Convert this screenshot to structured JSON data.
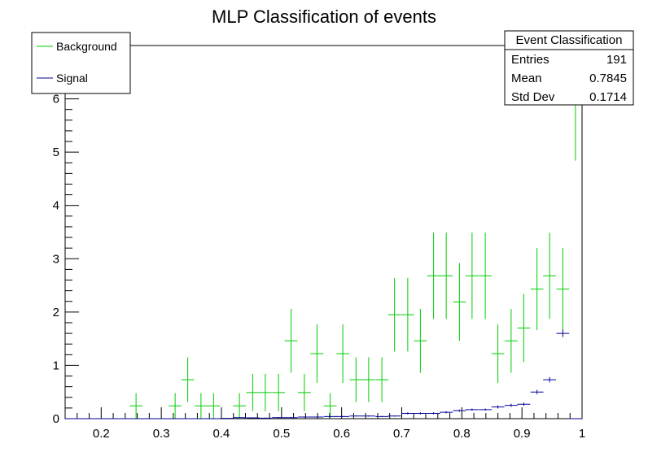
{
  "chart_data": {
    "type": "scatter",
    "title": "MLP Classification of events",
    "xlabel": "",
    "ylabel": "",
    "xlim": [
      0.14,
      1.0
    ],
    "ylim": [
      0,
      7.0
    ],
    "x_ticks": [
      "0.2",
      "0.3",
      "0.4",
      "0.5",
      "0.6",
      "0.7",
      "0.8",
      "0.9",
      "1"
    ],
    "y_ticks": [
      "0",
      "1",
      "2",
      "3",
      "4",
      "5",
      "6"
    ],
    "bin_width": 0.0215,
    "legend": {
      "placement": "top-left",
      "entries": [
        {
          "label": "Background",
          "color": "#00cc00"
        },
        {
          "label": "Signal",
          "color": "#000099"
        }
      ]
    },
    "stats_box": {
      "title": "Event Classification",
      "rows": [
        {
          "label": "Entries",
          "value": "191"
        },
        {
          "label": "Mean",
          "value": "0.7845"
        },
        {
          "label": "Std Dev",
          "value": "0.1714"
        }
      ]
    },
    "series": [
      {
        "name": "Background",
        "color": "#00cc00",
        "x": [
          0.258,
          0.323,
          0.344,
          0.366,
          0.387,
          0.43,
          0.452,
          0.473,
          0.495,
          0.516,
          0.538,
          0.559,
          0.581,
          0.602,
          0.624,
          0.645,
          0.667,
          0.688,
          0.71,
          0.731,
          0.753,
          0.774,
          0.796,
          0.817,
          0.839,
          0.86,
          0.882,
          0.903,
          0.925,
          0.946,
          0.968,
          0.989
        ],
        "y": [
          0.24,
          0.24,
          0.73,
          0.24,
          0.24,
          0.24,
          0.49,
          0.49,
          0.49,
          1.46,
          0.49,
          1.22,
          0.24,
          1.22,
          0.73,
          0.73,
          0.73,
          1.95,
          1.95,
          1.46,
          2.68,
          2.68,
          2.19,
          2.68,
          2.68,
          1.22,
          1.46,
          1.7,
          2.43,
          2.68,
          2.43,
          6.08
        ],
        "y_err": [
          0.24,
          0.24,
          0.42,
          0.24,
          0.24,
          0.24,
          0.35,
          0.35,
          0.35,
          0.6,
          0.35,
          0.55,
          0.24,
          0.55,
          0.42,
          0.42,
          0.42,
          0.69,
          0.69,
          0.6,
          0.81,
          0.81,
          0.73,
          0.81,
          0.81,
          0.55,
          0.6,
          0.64,
          0.77,
          0.81,
          0.77,
          1.24
        ]
      },
      {
        "name": "Signal",
        "color": "#000099",
        "x": [
          0.151,
          0.172,
          0.194,
          0.215,
          0.237,
          0.258,
          0.28,
          0.301,
          0.323,
          0.344,
          0.366,
          0.387,
          0.409,
          0.43,
          0.452,
          0.473,
          0.495,
          0.516,
          0.538,
          0.559,
          0.581,
          0.602,
          0.624,
          0.645,
          0.667,
          0.688,
          0.71,
          0.731,
          0.753,
          0.774,
          0.796,
          0.817,
          0.839,
          0.86,
          0.882,
          0.903,
          0.925,
          0.946,
          0.968,
          0.989
        ],
        "y": [
          0,
          0,
          0,
          0,
          0,
          0,
          0,
          0,
          0,
          0,
          0,
          0,
          0.005,
          0.02,
          0.015,
          0.01,
          0.02,
          0.02,
          0.03,
          0.03,
          0.04,
          0.04,
          0.05,
          0.05,
          0.04,
          0.05,
          0.1,
          0.1,
          0.1,
          0.12,
          0.15,
          0.17,
          0.17,
          0.22,
          0.25,
          0.27,
          0.5,
          0.73,
          1.6,
          0
        ],
        "y_err": [
          0,
          0,
          0,
          0,
          0,
          0,
          0,
          0,
          0,
          0,
          0,
          0,
          0.005,
          0.01,
          0.01,
          0.01,
          0.01,
          0.01,
          0.01,
          0.01,
          0.01,
          0.01,
          0.01,
          0.01,
          0.01,
          0.01,
          0.02,
          0.02,
          0.02,
          0.02,
          0.02,
          0.02,
          0.02,
          0.03,
          0.03,
          0.03,
          0.04,
          0.05,
          0.07,
          0
        ]
      }
    ]
  }
}
